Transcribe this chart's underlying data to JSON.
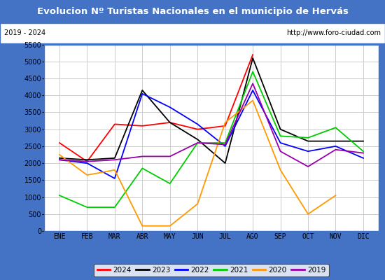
{
  "title": "Evolucion Nº Turistas Nacionales en el municipio de Hervás",
  "subtitle_left": "2019 - 2024",
  "subtitle_right": "http://www.foro-ciudad.com",
  "months": [
    "ENE",
    "FEB",
    "MAR",
    "ABR",
    "MAY",
    "JUN",
    "JUL",
    "AGO",
    "SEP",
    "OCT",
    "NOV",
    "DIC"
  ],
  "ylim": [
    0,
    5500
  ],
  "yticks": [
    0,
    500,
    1000,
    1500,
    2000,
    2500,
    3000,
    3500,
    4000,
    4500,
    5000,
    5500
  ],
  "series": {
    "2024": {
      "color": "#ff0000",
      "values": [
        2600,
        2050,
        3150,
        3100,
        3200,
        3000,
        3100,
        5200,
        null,
        null,
        null,
        null
      ]
    },
    "2023": {
      "color": "#000000",
      "values": [
        2150,
        2100,
        2150,
        4150,
        3200,
        2700,
        2000,
        5100,
        3000,
        2650,
        2650,
        2650
      ]
    },
    "2022": {
      "color": "#0000ff",
      "values": [
        2100,
        2000,
        1550,
        4050,
        3650,
        3150,
        2500,
        4150,
        2600,
        2350,
        2500,
        2150
      ]
    },
    "2021": {
      "color": "#00cc00",
      "values": [
        1050,
        700,
        700,
        1850,
        1400,
        2600,
        2600,
        4700,
        2800,
        2750,
        3050,
        2350
      ]
    },
    "2020": {
      "color": "#ff9900",
      "values": [
        2250,
        1650,
        1800,
        150,
        150,
        800,
        3200,
        3850,
        1800,
        500,
        1050,
        null
      ]
    },
    "2019": {
      "color": "#9900aa",
      "values": [
        2100,
        2050,
        2100,
        2200,
        2200,
        2600,
        2550,
        4350,
        2350,
        1900,
        2400,
        2300
      ]
    }
  },
  "title_bg_color": "#4472c4",
  "title_color": "#ffffff",
  "plot_bg_color": "#ffffff",
  "grid_color": "#cccccc",
  "border_color": "#4472c4",
  "legend_order": [
    "2024",
    "2023",
    "2022",
    "2021",
    "2020",
    "2019"
  ],
  "title_fontsize": 9.5,
  "tick_fontsize": 7,
  "legend_fontsize": 7.5
}
